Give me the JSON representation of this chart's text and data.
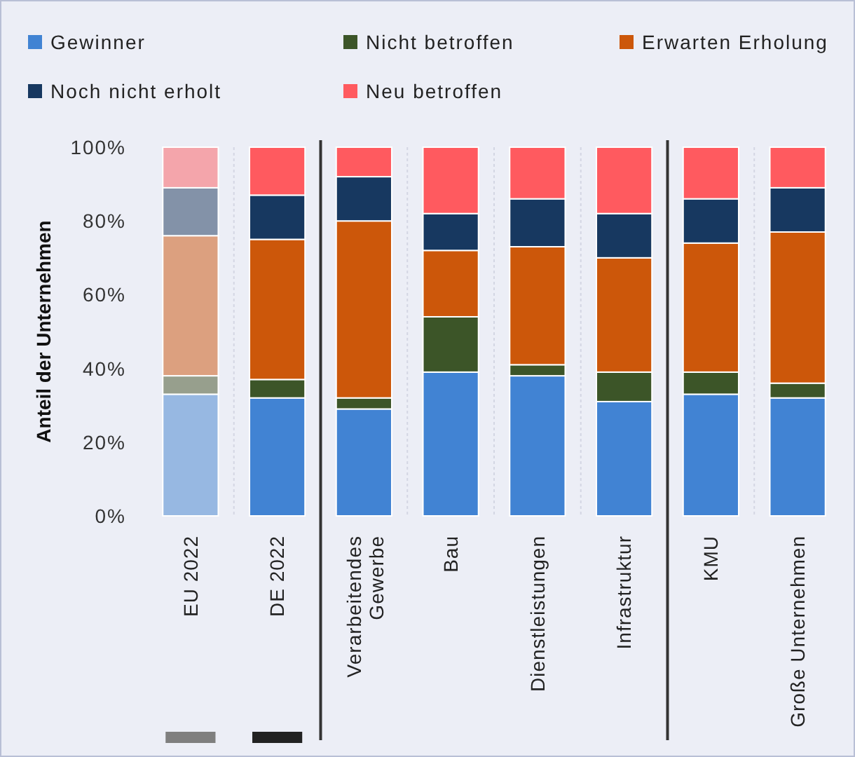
{
  "chart_data": {
    "type": "bar",
    "stacked": true,
    "ylabel": "Anteil der Unternehmen",
    "categories": [
      "EU 2022",
      "DE 2022",
      "Verarbeitendes Gewerbe",
      "Bau",
      "Dienstleistungen",
      "Infrastruktur",
      "KMU",
      "Große Unternehmen"
    ],
    "ylim": [
      0,
      100
    ],
    "yticks": [
      {
        "value": 0,
        "label": "0%"
      },
      {
        "value": 20,
        "label": "20%"
      },
      {
        "value": 40,
        "label": "40%"
      },
      {
        "value": 60,
        "label": "60%"
      },
      {
        "value": 80,
        "label": "80%"
      },
      {
        "value": 100,
        "label": "100%"
      }
    ],
    "legend": "top",
    "grid": false,
    "series": [
      {
        "name": "Gewinner",
        "color": "#4183d3",
        "colors": [
          "#97b8e2",
          "#4183d3",
          "#4183d3",
          "#4183d3",
          "#4183d3",
          "#4183d3",
          "#4183d3",
          "#4183d3"
        ],
        "values": [
          33,
          32,
          29,
          39,
          38,
          31,
          33,
          32
        ]
      },
      {
        "name": "Nicht betroffen",
        "color": "#3c5528",
        "colors": [
          "#979f8d",
          "#3c5528",
          "#3c5528",
          "#3c5528",
          "#3c5528",
          "#3c5528",
          "#3c5528",
          "#3c5528"
        ],
        "values": [
          5,
          5,
          3,
          15,
          3,
          8,
          6,
          4
        ]
      },
      {
        "name": "Erwarten Erholung",
        "color": "#cc570a",
        "colors": [
          "#dca07f",
          "#cc570a",
          "#cc570a",
          "#cc570a",
          "#cc570a",
          "#cc570a",
          "#cc570a",
          "#cc570a"
        ],
        "values": [
          38,
          38,
          48,
          18,
          32,
          31,
          35,
          41
        ]
      },
      {
        "name": "Noch nicht erholt",
        "color": "#173860",
        "colors": [
          "#8392a8",
          "#173860",
          "#173860",
          "#173860",
          "#173860",
          "#173860",
          "#173860",
          "#173860"
        ],
        "values": [
          13,
          12,
          12,
          10,
          13,
          12,
          12,
          12
        ]
      },
      {
        "name": "Neu betroffen",
        "color": "#ff5a5f",
        "colors": [
          "#f4a5ab",
          "#ff5a5f",
          "#ff5a5f",
          "#ff5a5f",
          "#ff5a5f",
          "#ff5a5f",
          "#ff5a5f",
          "#ff5a5f"
        ],
        "values": [
          11,
          13,
          8,
          18,
          14,
          18,
          14,
          11
        ]
      }
    ]
  }
}
